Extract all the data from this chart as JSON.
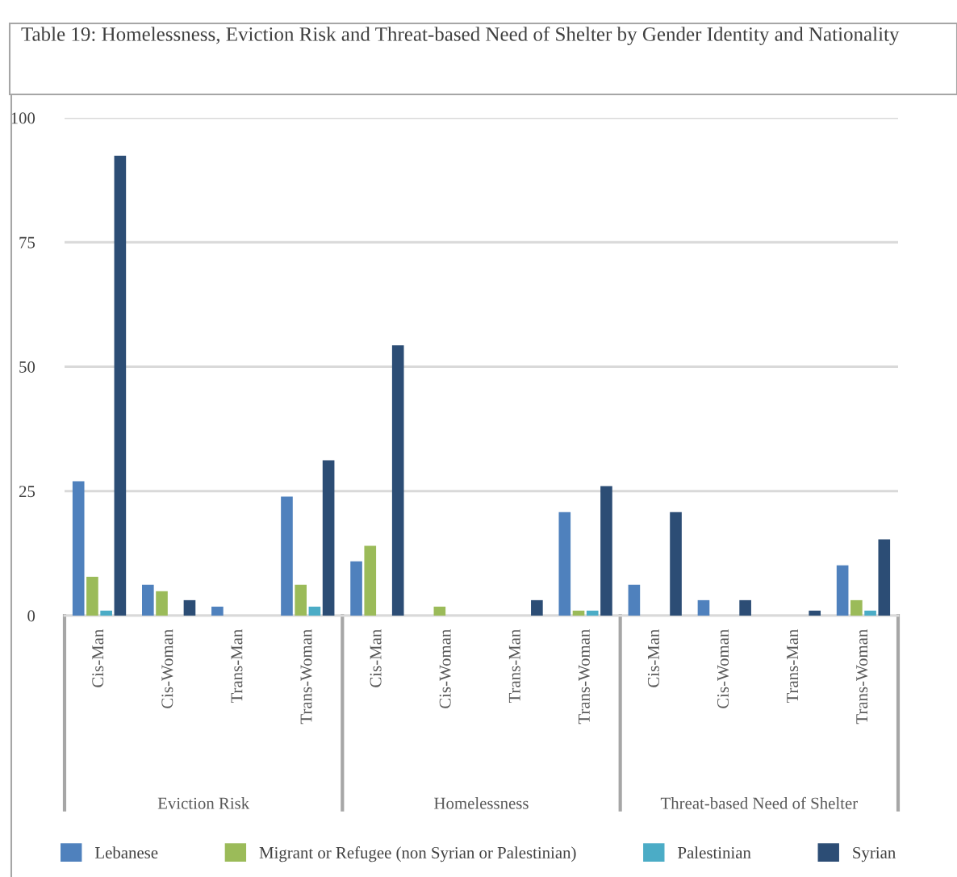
{
  "chart_data": {
    "type": "bar",
    "title": "Table 19: Homelessness, Eviction Risk and Threat-based Need of Shelter by Gender Identity and Nationality",
    "categories": [
      "Cis-Man",
      "Cis-Woman",
      "Trans-Man",
      "Trans-Woman",
      "Cis-Man",
      "Cis-Woman",
      "Trans-Man",
      "Trans-Woman",
      "Cis-Man",
      "Cis-Woman",
      "Trans-Man",
      "Trans-Woman"
    ],
    "annotations": [
      "Eviction Risk",
      "Homelessness",
      "Threat-based Need of Shelter"
    ],
    "series": [
      {
        "name": "Lebanese",
        "color": "#4f81bd",
        "values": [
          27.0,
          6.2,
          1.8,
          23.9,
          10.9,
          null,
          null,
          20.8,
          6.2,
          3.1,
          null,
          10.1
        ]
      },
      {
        "name": "Migrant or Refugee (non Syrian or Palestinian)",
        "color": "#9bbb59",
        "values": [
          7.8,
          4.9,
          null,
          6.2,
          14.0,
          1.8,
          null,
          1.0,
          null,
          null,
          null,
          3.1
        ]
      },
      {
        "name": "Palestinian",
        "color": "#4bacc6",
        "values": [
          1.0,
          null,
          null,
          1.8,
          null,
          null,
          null,
          1.0,
          null,
          null,
          null,
          1.0
        ]
      },
      {
        "name": "Syrian",
        "color": "#2c4d75",
        "values": [
          92.4,
          3.1,
          null,
          31.2,
          54.3,
          null,
          3.1,
          26.0,
          20.8,
          3.1,
          1.0,
          15.3
        ]
      }
    ],
    "ylim": [
      0,
      100
    ],
    "yticks": [
      0,
      25,
      50,
      75,
      100
    ],
    "grid": "y",
    "legend": "bottom"
  }
}
